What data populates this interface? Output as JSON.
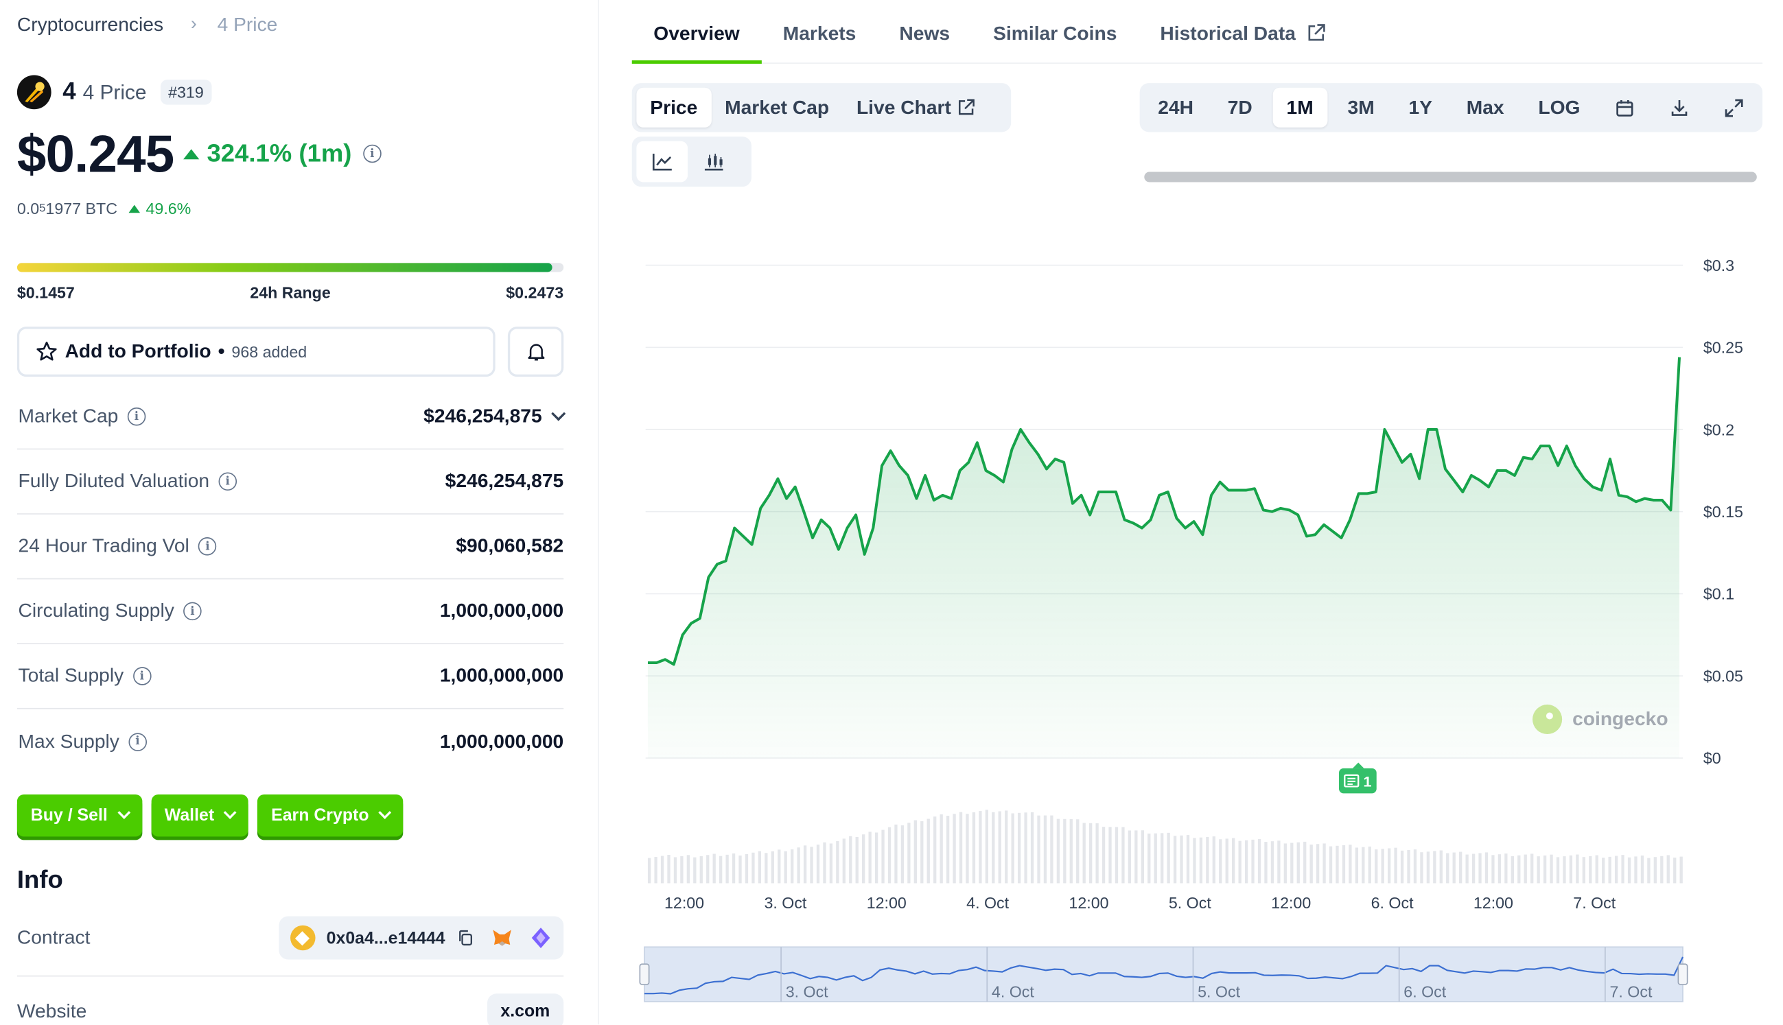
{
  "breadcrumb": {
    "root": "Cryptocurrencies",
    "current": "4 Price"
  },
  "coin": {
    "name": "4",
    "symbol": "4 Price",
    "rank": "#319"
  },
  "price": {
    "value": "$0.245",
    "change": "324.1% (1m)",
    "btc_prefix": "0.0",
    "btc_sub": "5",
    "btc_rest": "1977 BTC",
    "btc_change": "49.6%"
  },
  "range": {
    "low": "$0.1457",
    "label": "24h Range",
    "high": "$0.2473",
    "fill_fraction": 0.98
  },
  "portfolio": {
    "label": "Add to Portfolio",
    "bullet": "•",
    "added": "968 added"
  },
  "stats": [
    {
      "label": "Market Cap",
      "value": "$246,254,875"
    },
    {
      "label": "Fully Diluted Valuation",
      "value": "$246,254,875"
    },
    {
      "label": "24 Hour Trading Vol",
      "value": "$90,060,582"
    },
    {
      "label": "Circulating Supply",
      "value": "1,000,000,000"
    },
    {
      "label": "Total Supply",
      "value": "1,000,000,000"
    },
    {
      "label": "Max Supply",
      "value": "1,000,000,000"
    }
  ],
  "actions": {
    "buy_sell": "Buy / Sell",
    "wallet": "Wallet",
    "earn": "Earn Crypto"
  },
  "info": {
    "title": "Info",
    "contract_label": "Contract",
    "contract_value": "0x0a4...e14444",
    "website_label": "Website",
    "website_value": "x.com"
  },
  "tabs": [
    "Overview",
    "Markets",
    "News",
    "Similar Coins",
    "Historical Data"
  ],
  "chart_types": [
    "Price",
    "Market Cap",
    "Live Chart"
  ],
  "ranges": [
    "24H",
    "7D",
    "1M",
    "3M",
    "1Y",
    "Max",
    "LOG"
  ],
  "watermark": "coingecko",
  "news_badge": "1",
  "colors": {
    "accent": "#4bcc00",
    "up": "#16a34a",
    "line": "#16a34a"
  },
  "icons": {
    "logo": "meteor-icon",
    "info": "info-icon",
    "star": "star-icon",
    "bell": "bell-icon",
    "copy": "copy-icon",
    "metamask": "metamask-icon",
    "wallet": "wallet-icon",
    "external": "external-link-icon",
    "calendar": "calendar-icon",
    "download": "download-icon",
    "expand": "expand-icon"
  },
  "chart_data": {
    "type": "line",
    "title": "",
    "xlabel": "",
    "ylabel": "",
    "ylim": [
      0,
      0.3
    ],
    "y_ticks": [
      "$0.3",
      "$0.25",
      "$0.2",
      "$0.15",
      "$0.1",
      "$0.05",
      "$0"
    ],
    "x_ticks": [
      "12:00",
      "3. Oct",
      "12:00",
      "4. Oct",
      "12:00",
      "5. Oct",
      "12:00",
      "6. Oct",
      "12:00",
      "7. Oct"
    ],
    "navigator_ticks": [
      "3. Oct",
      "4. Oct",
      "5. Oct",
      "6. Oct",
      "7. Oct"
    ],
    "grid": true,
    "series": [
      {
        "values": [
          0.058,
          0.058,
          0.06,
          0.057,
          0.075,
          0.082,
          0.085,
          0.11,
          0.118,
          0.12,
          0.14,
          0.135,
          0.13,
          0.152,
          0.16,
          0.17,
          0.158,
          0.165,
          0.15,
          0.134,
          0.145,
          0.14,
          0.127,
          0.14,
          0.148,
          0.124,
          0.14,
          0.178,
          0.187,
          0.178,
          0.172,
          0.158,
          0.172,
          0.157,
          0.16,
          0.158,
          0.175,
          0.18,
          0.192,
          0.175,
          0.172,
          0.168,
          0.188,
          0.2,
          0.192,
          0.185,
          0.176,
          0.182,
          0.18,
          0.155,
          0.16,
          0.148,
          0.162,
          0.162,
          0.162,
          0.145,
          0.143,
          0.14,
          0.145,
          0.16,
          0.162,
          0.146,
          0.14,
          0.144,
          0.136,
          0.16,
          0.168,
          0.163,
          0.163,
          0.163,
          0.164,
          0.151,
          0.15,
          0.152,
          0.151,
          0.148,
          0.135,
          0.136,
          0.142,
          0.138,
          0.134,
          0.145,
          0.161,
          0.161,
          0.162,
          0.2,
          0.19,
          0.18,
          0.185,
          0.17,
          0.2,
          0.2,
          0.176,
          0.169,
          0.162,
          0.172,
          0.169,
          0.165,
          0.175,
          0.175,
          0.172,
          0.183,
          0.182,
          0.19,
          0.19,
          0.178,
          0.19,
          0.178,
          0.17,
          0.165,
          0.163,
          0.182,
          0.16,
          0.159,
          0.156,
          0.158,
          0.157,
          0.157,
          0.151,
          0.244
        ]
      }
    ]
  }
}
